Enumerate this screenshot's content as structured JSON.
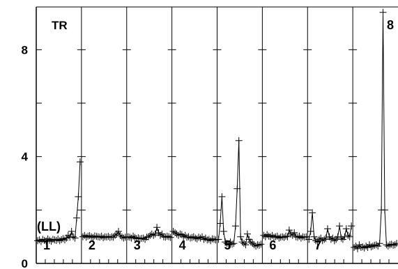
{
  "chart_data": {
    "type": "line",
    "title": "",
    "corner_label": "TR",
    "series_marker_label": "(LL)",
    "xlabel": "",
    "ylabel": "",
    "ylim": [
      0,
      9.6
    ],
    "y_tick_labels": [
      "0",
      "4",
      "8"
    ],
    "y_ticks": [
      0,
      4,
      8
    ],
    "y_minor_ticks": [
      2,
      6
    ],
    "grid": false,
    "marker": "plus",
    "line_color": "#000000",
    "panels": [
      {
        "label": "1",
        "values": [
          0.85,
          0.88,
          0.82,
          0.9,
          0.86,
          0.84,
          0.92,
          0.87,
          0.83,
          0.9,
          0.88,
          0.86,
          0.91,
          0.85,
          0.89,
          0.93,
          0.88,
          0.95,
          1.05,
          0.98,
          1.2,
          1.0,
          0.95,
          1.7,
          2.5,
          3.8
        ]
      },
      {
        "label": "2",
        "values": [
          1.0,
          1.05,
          0.98,
          1.02,
          1.04,
          1.0,
          0.97,
          1.03,
          1.01,
          1.0,
          0.98,
          1.02,
          0.96,
          1.0,
          0.99,
          1.01,
          0.97,
          1.0,
          0.98,
          1.05,
          1.1,
          1.2,
          1.05,
          1.0,
          0.95,
          0.98
        ]
      },
      {
        "label": "3",
        "values": [
          1.0,
          0.98,
          0.95,
          1.02,
          0.97,
          0.93,
          0.96,
          0.92,
          0.94,
          0.95,
          0.9,
          0.98,
          1.0,
          1.05,
          1.1,
          1.05,
          1.1,
          1.35,
          1.15,
          1.05,
          1.1,
          1.0,
          0.98,
          1.02,
          1.0,
          0.97
        ]
      },
      {
        "label": "4",
        "values": [
          1.2,
          1.15,
          1.1,
          1.05,
          1.1,
          1.08,
          1.0,
          1.05,
          0.98,
          1.0,
          0.95,
          0.97,
          1.0,
          0.95,
          0.92,
          0.98,
          0.95,
          1.0,
          0.9,
          0.95,
          0.88,
          0.9,
          0.85,
          0.92,
          0.9,
          0.88
        ]
      },
      {
        "label": "5",
        "values": [
          0.9,
          1.5,
          2.5,
          1.2,
          0.8,
          0.75,
          0.7,
          0.8,
          0.72,
          0.75,
          1.4,
          2.8,
          4.6,
          1.0,
          0.8,
          0.75,
          0.7,
          1.1,
          0.9,
          0.8,
          0.75,
          0.7,
          0.65,
          0.7,
          0.68,
          0.72
        ]
      },
      {
        "label": "6",
        "values": [
          1.05,
          1.0,
          1.08,
          1.02,
          1.0,
          1.05,
          0.98,
          1.0,
          1.02,
          0.95,
          0.98,
          1.0,
          0.97,
          1.02,
          1.0,
          1.25,
          1.1,
          1.05,
          1.15,
          1.0,
          0.98,
          1.02,
          0.95,
          1.0,
          0.98,
          1.0
        ]
      },
      {
        "label": "7",
        "values": [
          0.9,
          1.2,
          1.9,
          1.0,
          0.85,
          0.8,
          0.9,
          0.95,
          0.85,
          0.9,
          0.95,
          1.3,
          1.0,
          0.9,
          0.95,
          0.85,
          0.9,
          1.0,
          1.4,
          0.95,
          0.9,
          1.0,
          1.3,
          1.05,
          1.0,
          1.4
        ]
      },
      {
        "label": "8",
        "values": [
          0.6,
          0.65,
          0.55,
          0.7,
          0.6,
          0.62,
          0.58,
          0.65,
          0.6,
          0.7,
          0.62,
          0.65,
          0.68,
          0.7,
          0.65,
          0.75,
          2.0,
          9.4,
          2.0,
          0.7,
          0.65,
          0.7,
          0.72,
          0.68,
          0.7,
          0.75
        ]
      }
    ]
  }
}
